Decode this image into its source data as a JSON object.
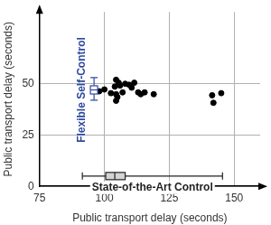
{
  "chart_data": {
    "type": "scatter",
    "x_label": "Public transport delay (seconds)",
    "y_label": "Public transport delay (seconds)",
    "x": [
      98,
      100,
      102.5,
      104,
      104.5,
      105.5,
      106,
      104.5,
      105,
      104.5,
      107,
      108,
      109.5,
      110.5,
      111.5,
      113,
      114,
      115.5,
      119,
      141.5,
      142,
      145
    ],
    "values": [
      46.3,
      47.2,
      45.4,
      48.6,
      51.9,
      50.5,
      49.1,
      44.9,
      43.5,
      41.7,
      45.8,
      50,
      49.5,
      48.1,
      50.5,
      45.8,
      44.9,
      45.8,
      44.9,
      44.4,
      40.7,
      45.4
    ],
    "color": "#000000",
    "marker": "circle",
    "xlim": [
      75,
      160
    ],
    "xticks": [
      75,
      100,
      125,
      150
    ],
    "ylim": [
      0,
      85
    ],
    "yticks": [
      0,
      25,
      50
    ],
    "grid": true,
    "boxes": [
      {
        "label": "Flexible Self-Control",
        "axis": "y",
        "position": 96,
        "min": 42,
        "q1": 45,
        "median": 47,
        "q3": 49,
        "max": 53,
        "color": "#2e4a9e"
      },
      {
        "label": "State-of-the-Art Control",
        "axis": "x",
        "position": 5,
        "min": 91.5,
        "q1": 100.5,
        "median": 104,
        "q3": 108,
        "max": 145.5,
        "color": "#222222"
      }
    ]
  }
}
